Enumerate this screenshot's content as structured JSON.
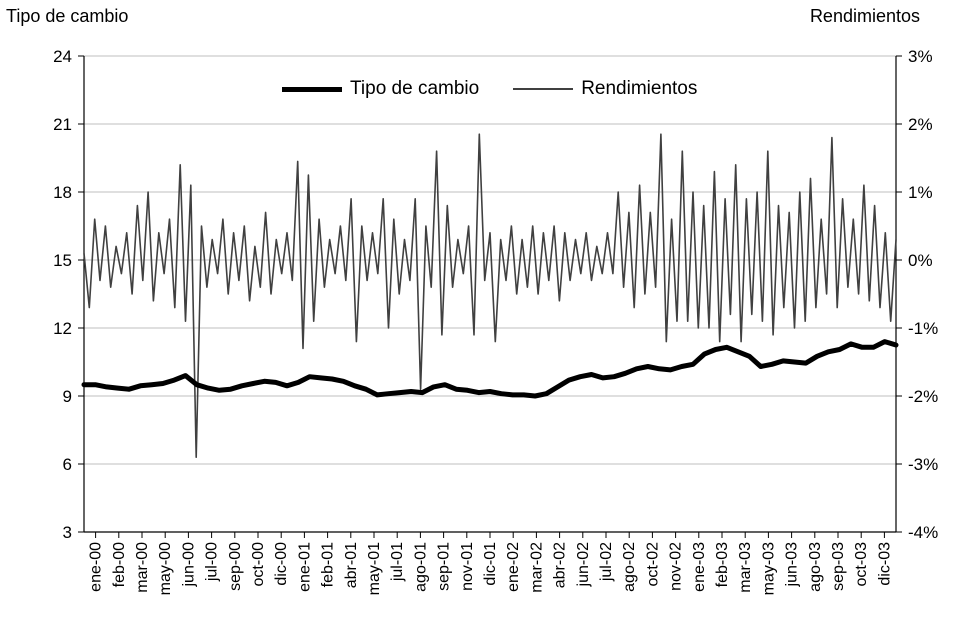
{
  "chart_data": {
    "type": "line",
    "ylabel_left": "Tipo de cambio",
    "ylabel_right": "Rendimientos",
    "ylim_left": [
      3,
      24
    ],
    "yticks_left": [
      "24",
      "21",
      "18",
      "15",
      "12",
      "9",
      "6",
      "3"
    ],
    "ylim_right": [
      -4,
      3
    ],
    "yticks_right": [
      "3%",
      "2%",
      "1%",
      "0%",
      "-1%",
      "-2%",
      "-3%",
      "-4%"
    ],
    "x_tick_labels": [
      "ene-00",
      "feb-00",
      "mar-00",
      "may-00",
      "jun-00",
      "jul-00",
      "sep-00",
      "oct-00",
      "dic-00",
      "ene-01",
      "feb-01",
      "abr-01",
      "may-01",
      "jul-01",
      "ago-01",
      "sep-01",
      "nov-01",
      "dic-01",
      "ene-02",
      "mar-02",
      "abr-02",
      "jun-02",
      "jul-02",
      "ago-02",
      "oct-02",
      "nov-02",
      "ene-03",
      "feb-03",
      "mar-03",
      "may-03",
      "jun-03",
      "ago-03",
      "sep-03",
      "oct-03",
      "dic-03"
    ],
    "grid": true,
    "legend_position": "top-center",
    "series": [
      {
        "name": "Tipo de cambio",
        "axis": "left",
        "style": "thick",
        "color": "#000000",
        "values": [
          9.5,
          9.5,
          9.4,
          9.35,
          9.3,
          9.45,
          9.5,
          9.55,
          9.7,
          9.9,
          9.5,
          9.35,
          9.25,
          9.3,
          9.45,
          9.55,
          9.65,
          9.6,
          9.45,
          9.6,
          9.85,
          9.8,
          9.75,
          9.65,
          9.45,
          9.3,
          9.05,
          9.1,
          9.15,
          9.2,
          9.15,
          9.4,
          9.5,
          9.3,
          9.25,
          9.15,
          9.2,
          9.1,
          9.05,
          9.05,
          9.0,
          9.1,
          9.4,
          9.7,
          9.85,
          9.95,
          9.8,
          9.85,
          10.0,
          10.2,
          10.3,
          10.2,
          10.15,
          10.3,
          10.4,
          10.85,
          11.05,
          11.15,
          10.95,
          10.75,
          10.3,
          10.4,
          10.55,
          10.5,
          10.45,
          10.75,
          10.95,
          11.05,
          11.3,
          11.15,
          11.15,
          11.4,
          11.25
        ]
      },
      {
        "name": "Rendimientos",
        "axis": "right",
        "style": "thin",
        "color": "#404040",
        "values": [
          0.1,
          -0.7,
          0.6,
          -0.3,
          0.5,
          -0.4,
          0.2,
          -0.2,
          0.4,
          -0.5,
          0.8,
          -0.3,
          1.0,
          -0.6,
          0.4,
          -0.2,
          0.6,
          -0.7,
          1.4,
          -0.9,
          1.1,
          -2.9,
          0.5,
          -0.4,
          0.3,
          -0.2,
          0.6,
          -0.5,
          0.4,
          -0.3,
          0.5,
          -0.6,
          0.2,
          -0.4,
          0.7,
          -0.5,
          0.3,
          -0.2,
          0.4,
          -0.3,
          1.45,
          -1.3,
          1.25,
          -0.9,
          0.6,
          -0.4,
          0.3,
          -0.2,
          0.5,
          -0.3,
          0.9,
          -1.2,
          0.5,
          -0.3,
          0.4,
          -0.2,
          0.9,
          -1.0,
          0.6,
          -0.5,
          0.3,
          -0.3,
          0.9,
          -1.9,
          0.5,
          -0.4,
          1.6,
          -1.1,
          0.8,
          -0.4,
          0.3,
          -0.2,
          0.5,
          -1.1,
          1.85,
          -0.3,
          0.4,
          -1.2,
          0.3,
          -0.3,
          0.5,
          -0.5,
          0.3,
          -0.4,
          0.5,
          -0.5,
          0.4,
          -0.3,
          0.5,
          -0.6,
          0.4,
          -0.3,
          0.3,
          -0.2,
          0.4,
          -0.3,
          0.2,
          -0.2,
          0.4,
          -0.2,
          1.0,
          -0.4,
          0.7,
          -0.7,
          1.1,
          -0.5,
          0.7,
          -0.4,
          1.85,
          -1.2,
          0.6,
          -0.9,
          1.6,
          -0.9,
          1.0,
          -1.0,
          0.8,
          -1.0,
          1.3,
          -1.2,
          0.9,
          -0.8,
          1.4,
          -1.2,
          0.9,
          -0.8,
          1.0,
          -0.9,
          1.6,
          -1.1,
          0.8,
          -0.7,
          0.7,
          -1.0,
          1.0,
          -0.9,
          1.2,
          -0.7,
          0.6,
          -0.5,
          1.8,
          -0.7,
          0.9,
          -0.4,
          0.6,
          -0.5,
          1.1,
          -0.6,
          0.8,
          -0.7,
          0.4,
          -0.9,
          0.3
        ]
      }
    ]
  }
}
